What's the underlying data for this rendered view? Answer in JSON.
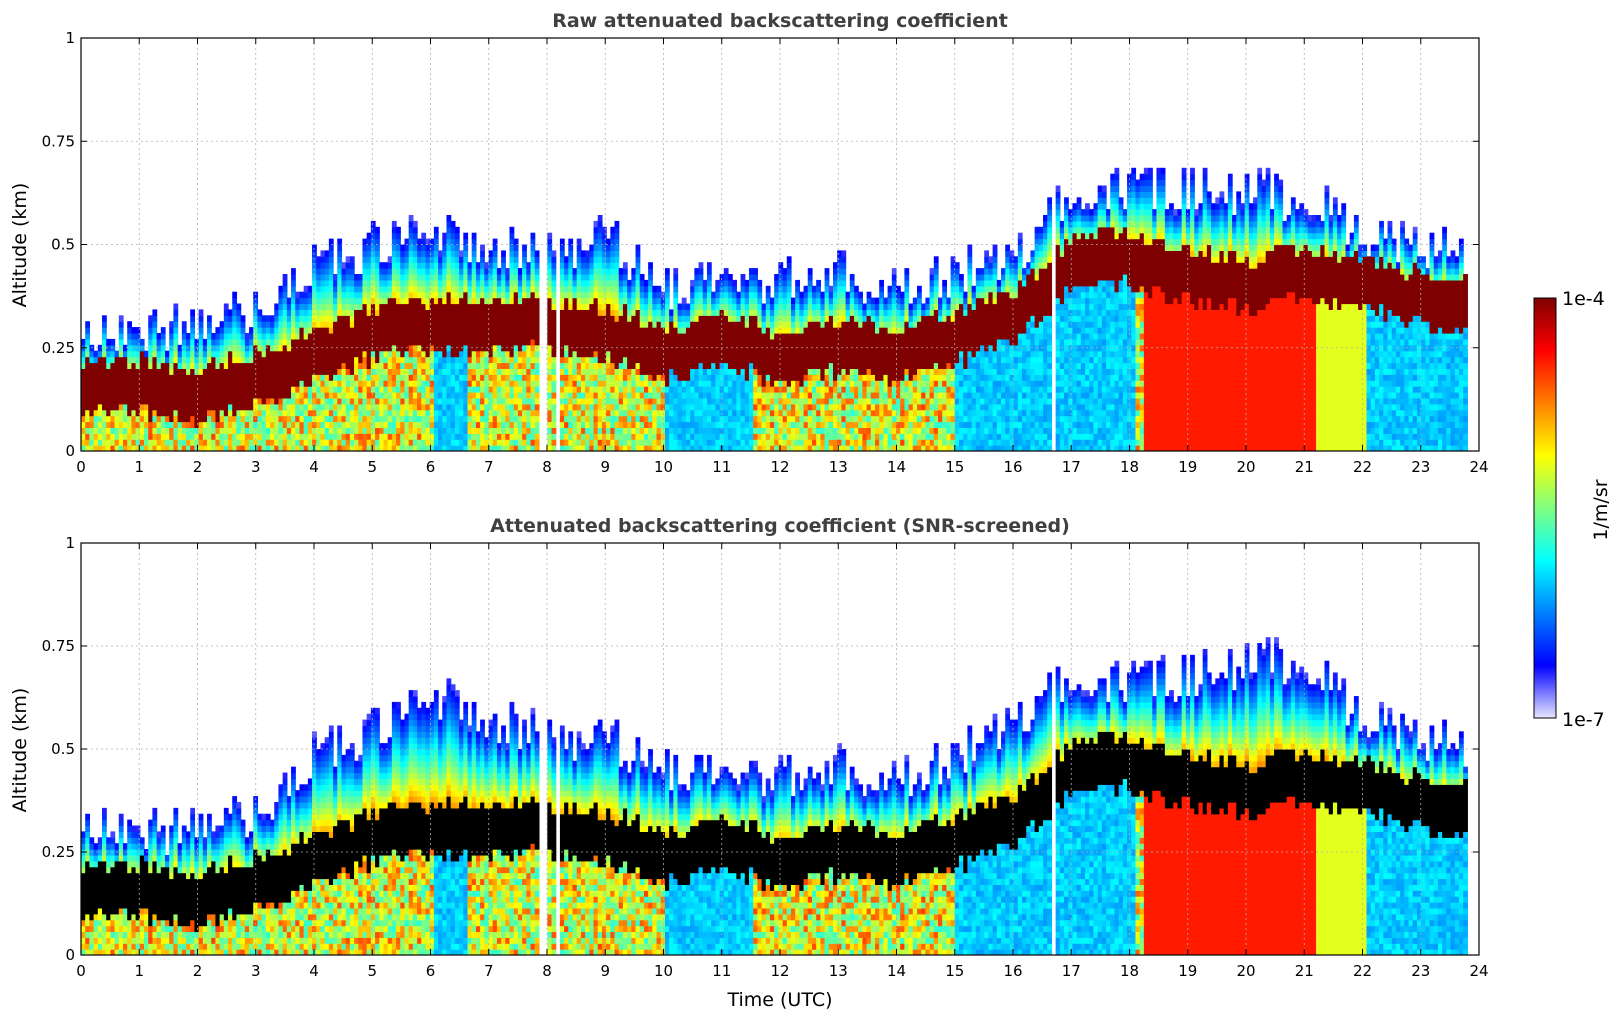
{
  "chart_data": [
    {
      "type": "heatmap",
      "title": "Raw attenuated backscattering coefficient",
      "xlabel": "",
      "ylabel": "Altitude (km)",
      "xlim": [
        0,
        24
      ],
      "ylim": [
        0,
        1
      ],
      "xticks": [
        "0",
        "1",
        "2",
        "3",
        "4",
        "5",
        "6",
        "7",
        "8",
        "9",
        "10",
        "11",
        "12",
        "13",
        "14",
        "15",
        "16",
        "17",
        "18",
        "19",
        "20",
        "21",
        "22",
        "23",
        "24"
      ],
      "yticks": [
        "0",
        "0.25",
        "0.5",
        "0.75",
        "1"
      ],
      "grid": true,
      "color_scale": "jet (log)",
      "layer_top_km": [
        [
          0,
          0.27
        ],
        [
          1,
          0.27
        ],
        [
          2,
          0.26
        ],
        [
          3,
          0.32
        ],
        [
          4,
          0.42
        ],
        [
          5,
          0.47
        ],
        [
          6,
          0.5
        ],
        [
          7,
          0.47
        ],
        [
          8,
          0.45
        ],
        [
          9,
          0.5
        ],
        [
          10,
          0.36
        ],
        [
          11,
          0.4
        ],
        [
          12,
          0.38
        ],
        [
          13,
          0.4
        ],
        [
          14,
          0.35
        ],
        [
          15,
          0.4
        ],
        [
          16,
          0.45
        ],
        [
          17,
          0.6
        ],
        [
          18,
          0.6
        ],
        [
          19,
          0.6
        ],
        [
          20,
          0.6
        ],
        [
          21,
          0.58
        ],
        [
          22,
          0.5
        ],
        [
          23,
          0.47
        ],
        [
          23.8,
          0.45
        ]
      ],
      "aerosol_core_km": [
        [
          0,
          0.15
        ],
        [
          1,
          0.15
        ],
        [
          2,
          0.13
        ],
        [
          3,
          0.17
        ],
        [
          4,
          0.22
        ],
        [
          5,
          0.28
        ],
        [
          6,
          0.3
        ],
        [
          7,
          0.3
        ],
        [
          8,
          0.3
        ],
        [
          9,
          0.28
        ],
        [
          10,
          0.23
        ],
        [
          11,
          0.26
        ],
        [
          12,
          0.22
        ],
        [
          13,
          0.25
        ],
        [
          14,
          0.23
        ],
        [
          15,
          0.27
        ],
        [
          16,
          0.32
        ],
        [
          17,
          0.45
        ],
        [
          18,
          0.46
        ],
        [
          19,
          0.42
        ],
        [
          20,
          0.4
        ],
        [
          21,
          0.42
        ],
        [
          22,
          0.4
        ],
        [
          23,
          0.36
        ],
        [
          23.8,
          0.35
        ]
      ]
    },
    {
      "type": "heatmap",
      "title": "Attenuated backscattering coefficient (SNR-screened)",
      "xlabel": "Time (UTC)",
      "ylabel": "Altitude (km)",
      "xlim": [
        0,
        24
      ],
      "ylim": [
        0,
        1
      ],
      "xticks": [
        "0",
        "1",
        "2",
        "3",
        "4",
        "5",
        "6",
        "7",
        "8",
        "9",
        "10",
        "11",
        "12",
        "13",
        "14",
        "15",
        "16",
        "17",
        "18",
        "19",
        "20",
        "21",
        "22",
        "23",
        "24"
      ],
      "yticks": [
        "0",
        "0.25",
        "0.5",
        "0.75",
        "1"
      ],
      "grid": true,
      "color_scale": "jet (log), saturated values shown black",
      "layer_top_km": [
        [
          0,
          0.3
        ],
        [
          1,
          0.28
        ],
        [
          2,
          0.27
        ],
        [
          3,
          0.32
        ],
        [
          4,
          0.45
        ],
        [
          5,
          0.52
        ],
        [
          6,
          0.6
        ],
        [
          7,
          0.55
        ],
        [
          8,
          0.5
        ],
        [
          9,
          0.5
        ],
        [
          10,
          0.42
        ],
        [
          11,
          0.42
        ],
        [
          12,
          0.4
        ],
        [
          13,
          0.42
        ],
        [
          14,
          0.38
        ],
        [
          15,
          0.45
        ],
        [
          16,
          0.55
        ],
        [
          17,
          0.65
        ],
        [
          18,
          0.62
        ],
        [
          19,
          0.65
        ],
        [
          20,
          0.68
        ],
        [
          21,
          0.68
        ],
        [
          22,
          0.55
        ],
        [
          23,
          0.5
        ],
        [
          23.8,
          0.48
        ]
      ],
      "aerosol_core_km": [
        [
          0,
          0.15
        ],
        [
          1,
          0.15
        ],
        [
          2,
          0.13
        ],
        [
          3,
          0.17
        ],
        [
          4,
          0.22
        ],
        [
          5,
          0.28
        ],
        [
          6,
          0.3
        ],
        [
          7,
          0.3
        ],
        [
          8,
          0.3
        ],
        [
          9,
          0.28
        ],
        [
          10,
          0.23
        ],
        [
          11,
          0.26
        ],
        [
          12,
          0.22
        ],
        [
          13,
          0.25
        ],
        [
          14,
          0.23
        ],
        [
          15,
          0.27
        ],
        [
          16,
          0.32
        ],
        [
          17,
          0.45
        ],
        [
          18,
          0.46
        ],
        [
          19,
          0.42
        ],
        [
          20,
          0.4
        ],
        [
          21,
          0.42
        ],
        [
          22,
          0.4
        ],
        [
          23,
          0.36
        ],
        [
          23.8,
          0.35
        ]
      ]
    }
  ],
  "colorbar": {
    "max_label": "1e-4",
    "min_label": "1e-7",
    "unit_label": "1/m/sr",
    "colors": [
      "#7f0000",
      "#ff0000",
      "#ff8000",
      "#ffff00",
      "#80ff80",
      "#00ffff",
      "#0080ff",
      "#0000ff",
      "#e6e6ff"
    ]
  }
}
